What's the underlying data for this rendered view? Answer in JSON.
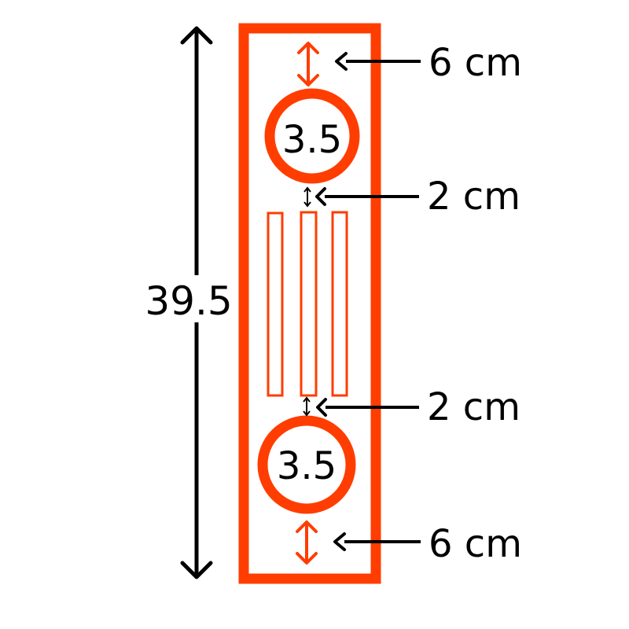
{
  "colors": {
    "accent": "#FF3D00",
    "ink": "#000000",
    "background": "#FFFFFF"
  },
  "overall_height": {
    "value": "39.5"
  },
  "circles": [
    {
      "label": "3.5"
    },
    {
      "label": "3.5"
    }
  ],
  "gaps": [
    {
      "label": "6 cm",
      "position": "top"
    },
    {
      "label": "2 cm",
      "position": "upper"
    },
    {
      "label": "2 cm",
      "position": "lower"
    },
    {
      "label": "6 cm",
      "position": "bottom"
    }
  ],
  "slots": {
    "count": 3
  }
}
